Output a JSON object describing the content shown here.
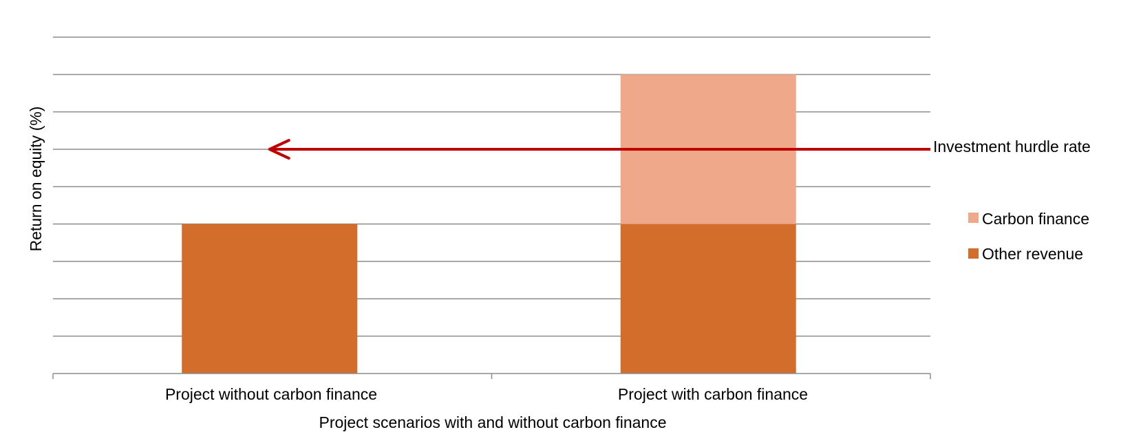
{
  "chart_data": {
    "type": "bar",
    "stacked": true,
    "categories": [
      "Project without carbon finance",
      "Project with carbon finance"
    ],
    "series": [
      {
        "name": "Other revenue",
        "values": [
          4,
          4
        ],
        "color": "#D36D2C"
      },
      {
        "name": "Carbon finance",
        "values": [
          0,
          4
        ],
        "color": "#F0A88A"
      }
    ],
    "xlabel": "Project scenarios with and without carbon finance",
    "ylabel": "Return on equity (%)",
    "ylim": [
      0,
      9
    ],
    "gridlines": true,
    "y_tick_labels_shown": false,
    "legend": {
      "position": "right",
      "items": [
        "Carbon finance",
        "Other revenue"
      ]
    },
    "annotation": {
      "text": "Investment hurdle rate",
      "y": 6,
      "arrow_toward": "Project without carbon finance",
      "color": "#C00000"
    }
  }
}
